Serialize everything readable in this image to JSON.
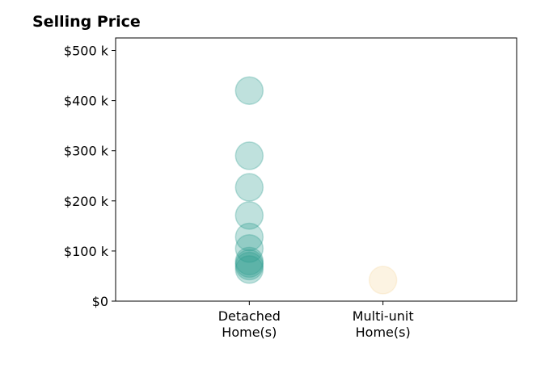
{
  "chart_data": {
    "type": "scatter",
    "title": "Selling Price",
    "xlabel": "",
    "ylabel": "",
    "categories": [
      "Detached\nHome(s)",
      "Multi-unit\nHome(s)"
    ],
    "xlim": [
      -1,
      2
    ],
    "ylim": [
      0,
      525000
    ],
    "yticks": [
      0,
      100000,
      200000,
      300000,
      400000,
      500000
    ],
    "ytick_labels": [
      "$0",
      "$100 k",
      "$200 k",
      "$300 k",
      "$400 k",
      "$500 k"
    ],
    "grid": false,
    "series": [
      {
        "category": "Detached\nHome(s)",
        "color": "#2a9d8f",
        "values": [
          420000,
          290000,
          227000,
          171000,
          128000,
          105000,
          80000,
          75000,
          70000,
          63000
        ]
      },
      {
        "category": "Multi-unit\nHome(s)",
        "color": "#f4d8a0",
        "values": [
          42000
        ]
      }
    ]
  }
}
